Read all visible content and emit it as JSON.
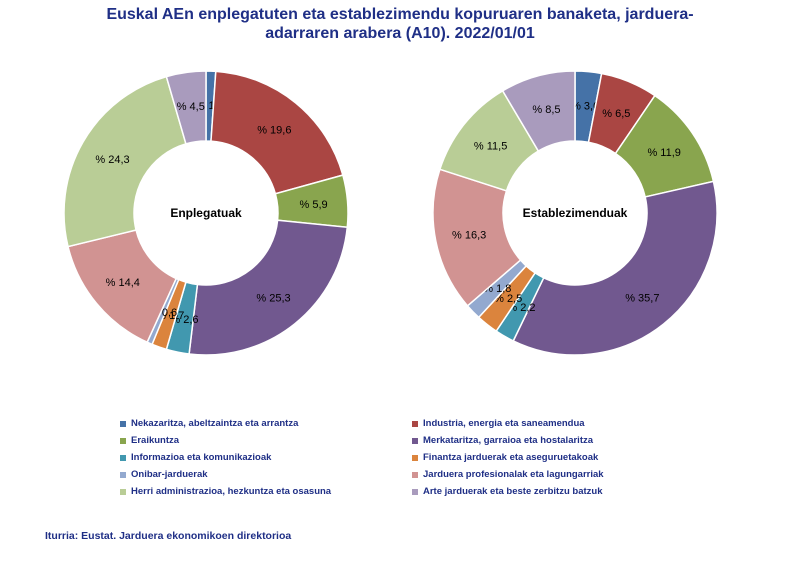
{
  "title": {
    "line1": "Euskal AEn enplegatuten eta establezimendu kopuruaren banaketa, jarduera-",
    "line2": "adarraren arabera (A10). 2022/01/01"
  },
  "chart_data": [
    {
      "type": "pie",
      "center_label": "Enplegatuak",
      "labels": [
        "Nekazaritza, abeltzaintza eta arrantza",
        "Industria, energia eta saneamendua",
        "Eraikuntza",
        "Merkataritza, garraioa eta hostalaritza",
        "Informazioa eta komunikazioak",
        "Finantza jarduerak eta aseguruetakoak",
        "Onibar-jarduerak",
        "Jarduera profesionalak eta lagungarriak",
        "Herri administrazioa, hezkuntza eta osasuna",
        "Arte jarduerak eta beste zerbitzu batzuk"
      ],
      "values": [
        1.1,
        19.6,
        5.9,
        25.3,
        2.6,
        1.7,
        0.6,
        14.4,
        24.3,
        4.5
      ],
      "data_labels": [
        "% 1,1",
        "% 19,6",
        "% 5,9",
        "% 25,3",
        "% 2,6",
        "% 1,7",
        "% 0,6",
        "% 14,4",
        "% 24,3",
        "% 4,5"
      ]
    },
    {
      "type": "pie",
      "center_label": "Establezimenduak",
      "labels": [
        "Nekazaritza, abeltzaintza eta arrantza",
        "Industria, energia eta saneamendua",
        "Eraikuntza",
        "Merkataritza, garraioa eta hostalaritza",
        "Informazioa eta komunikazioak",
        "Finantza jarduerak eta aseguruetakoak",
        "Onibar-jarduerak",
        "Jarduera profesionalak eta lagungarriak",
        "Herri administrazioa, hezkuntza eta osasuna",
        "Arte jarduerak eta beste zerbitzu batzuk"
      ],
      "values": [
        3.0,
        6.5,
        11.9,
        35.7,
        2.2,
        2.5,
        1.8,
        16.3,
        11.5,
        8.5
      ],
      "data_labels": [
        "% 3,0",
        "% 6,5",
        "% 11,9",
        "% 35,7",
        "% 2,2",
        "% 2,5",
        "% 1,8",
        "% 16,3",
        "% 11,5",
        "% 8,5"
      ]
    }
  ],
  "colors": [
    "#4572a7",
    "#aa4643",
    "#89a54e",
    "#71588f",
    "#4198af",
    "#db843d",
    "#93a9cf",
    "#d19392",
    "#b9cd96",
    "#a99bbd"
  ],
  "legend": {
    "items": [
      "Nekazaritza, abeltzaintza eta arrantza",
      "Industria, energia eta saneamendua",
      "Eraikuntza",
      "Merkataritza, garraioa eta hostalaritza",
      "Informazioa eta komunikazioak",
      "Finantza jarduerak eta aseguruetakoak",
      "Onibar-jarduerak",
      "Jarduera profesionalak eta lagungarriak",
      "Herri administrazioa, hezkuntza eta osasuna",
      "Arte jarduerak eta beste zerbitzu batzuk"
    ]
  },
  "source": "Iturria: Eustat. Jarduera ekonomikoen direktorioa"
}
